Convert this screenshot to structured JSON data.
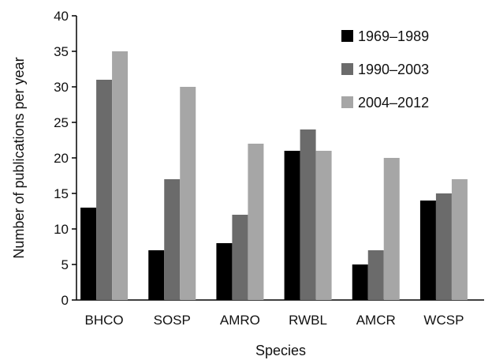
{
  "chart_data": {
    "type": "bar",
    "title": "",
    "xlabel": "Species",
    "ylabel": "Number of publications per year",
    "categories": [
      "BHCO",
      "SOSP",
      "AMRO",
      "RWBL",
      "AMCR",
      "WCSP"
    ],
    "ylim": [
      0,
      40
    ],
    "yticks": [
      "0",
      "5",
      "10",
      "15",
      "20",
      "25",
      "30",
      "35",
      "40"
    ],
    "grid": false,
    "legend_position": "top-right",
    "series": [
      {
        "name": "1969–1989",
        "color": "#000000",
        "values": [
          13,
          7,
          8,
          21,
          5,
          14
        ]
      },
      {
        "name": "1990–2003",
        "color": "#6b6b6b",
        "values": [
          31,
          17,
          12,
          24,
          7,
          15
        ]
      },
      {
        "name": "2004–2012",
        "color": "#a6a6a6",
        "values": [
          35,
          30,
          22,
          21,
          20,
          17
        ]
      }
    ]
  }
}
